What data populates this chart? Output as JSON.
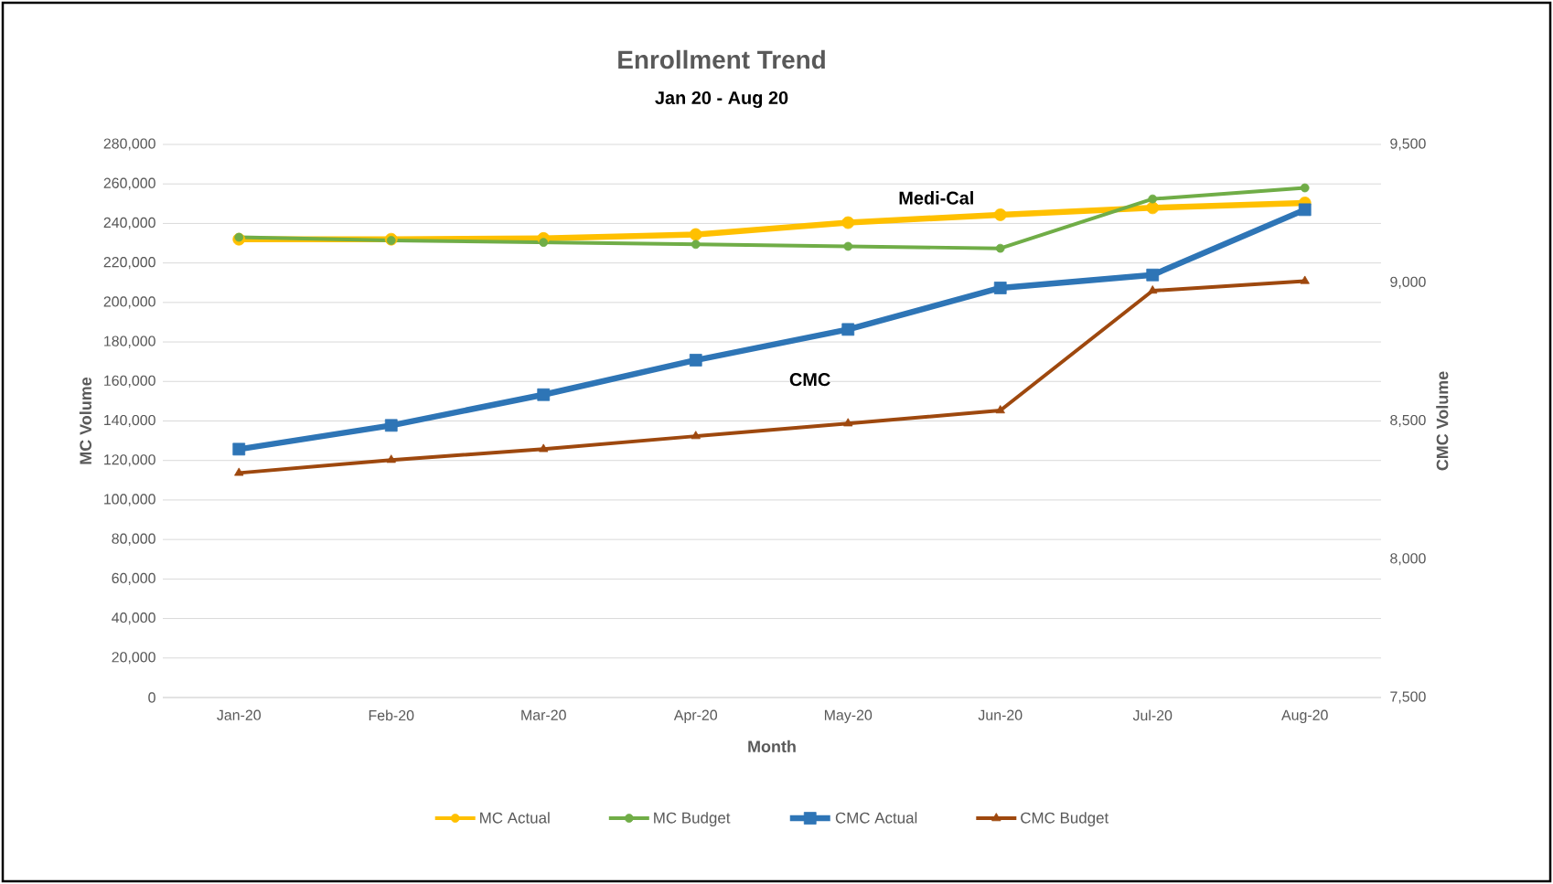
{
  "chart_data": {
    "type": "line",
    "title": "Enrollment Trend",
    "subtitle": "Jan 20 - Aug 20",
    "xlabel": "Month",
    "ylabel": "MC Volume",
    "y2label": "CMC Volume",
    "categories": [
      "Jan-20",
      "Feb-20",
      "Mar-20",
      "Apr-20",
      "May-20",
      "Jun-20",
      "Jul-20",
      "Aug-20"
    ],
    "series": [
      {
        "name": "MC Actual",
        "color": "#ffc000",
        "marker": "circle",
        "values": [
          232000,
          232000,
          232400,
          234400,
          240400,
          244400,
          247900,
          250400
        ]
      },
      {
        "name": "MC Budget",
        "color": "#70ad47",
        "marker": "circle",
        "values": [
          233000,
          231400,
          230400,
          229400,
          228400,
          227400,
          252400,
          258000
        ]
      },
      {
        "name": "CMC Actual",
        "color": "#2e75b6",
        "marker": "square",
        "axis": "y2",
        "values": [
          8398,
          8484,
          8595,
          8720,
          8831,
          8981,
          9028,
          9264
        ]
      },
      {
        "name": "CMC Budget",
        "color": "#9e480e",
        "marker": "triangle",
        "axis": "y2",
        "values": [
          8312,
          8359,
          8398,
          8445,
          8491,
          8538,
          8971,
          9006
        ]
      }
    ],
    "ylim": [
      0,
      280000
    ],
    "yticks": [
      {
        "value": 0,
        "label": "0"
      },
      {
        "value": 20000,
        "label": "20,000"
      },
      {
        "value": 40000,
        "label": "40,000"
      },
      {
        "value": 60000,
        "label": "60,000"
      },
      {
        "value": 80000,
        "label": "80,000"
      },
      {
        "value": 100000,
        "label": "100,000"
      },
      {
        "value": 120000,
        "label": "120,000"
      },
      {
        "value": 140000,
        "label": "140,000"
      },
      {
        "value": 160000,
        "label": "160,000"
      },
      {
        "value": 180000,
        "label": "180,000"
      },
      {
        "value": 200000,
        "label": "200,000"
      },
      {
        "value": 220000,
        "label": "220,000"
      },
      {
        "value": 240000,
        "label": "240,000"
      },
      {
        "value": 260000,
        "label": "260,000"
      },
      {
        "value": 280000,
        "label": "280,000"
      }
    ],
    "y2lim": [
      7500,
      9500
    ],
    "y2ticks": [
      {
        "value": 7500,
        "label": "7,500"
      },
      {
        "value": 8000,
        "label": "8,000"
      },
      {
        "value": 8500,
        "label": "8,500"
      },
      {
        "value": 9000,
        "label": "9,000"
      },
      {
        "value": 9500,
        "label": "9,500"
      }
    ],
    "annotations": [
      "Medi-Cal",
      "CMC"
    ],
    "grid": "y",
    "legend": "bottom",
    "line_style": "solid"
  }
}
